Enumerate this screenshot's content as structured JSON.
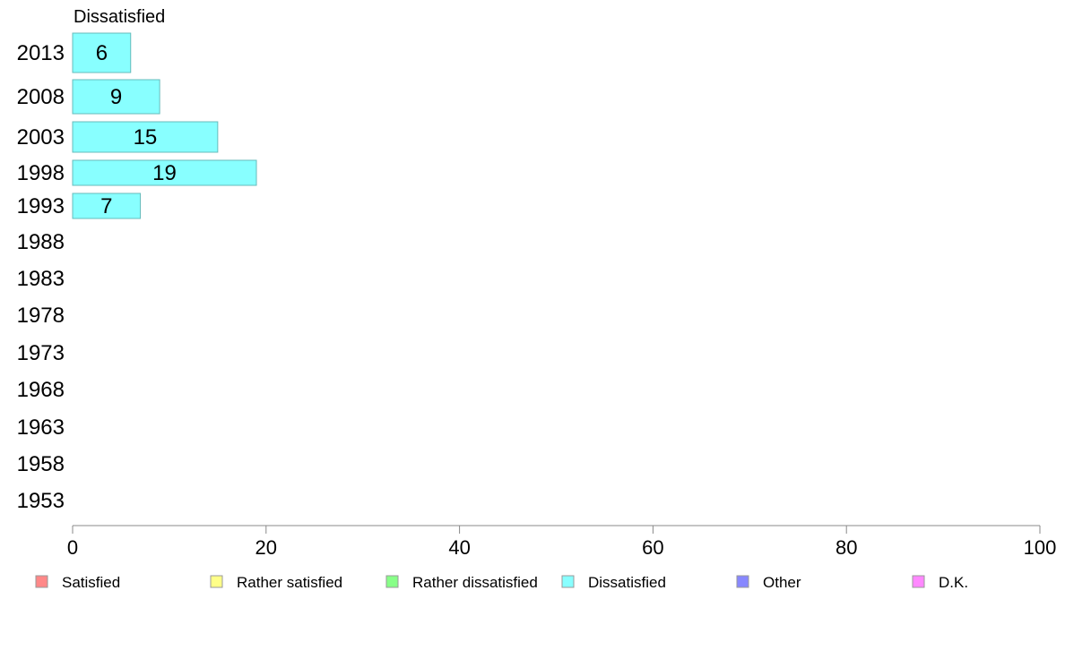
{
  "chart_data": {
    "type": "bar",
    "orientation": "horizontal",
    "title": "Dissatisfied",
    "categories": [
      "2013",
      "2008",
      "2003",
      "1998",
      "1993",
      "1988",
      "1983",
      "1978",
      "1973",
      "1968",
      "1963",
      "1958",
      "1953"
    ],
    "series": [
      {
        "name": "Dissatisfied",
        "values": [
          6,
          9,
          15,
          19,
          7,
          null,
          null,
          null,
          null,
          null,
          null,
          null,
          null
        ],
        "color": "#88ffff"
      }
    ],
    "xlim": [
      0,
      100
    ],
    "xticks": [
      "0",
      "20",
      "40",
      "60",
      "80",
      "100"
    ],
    "grid": false,
    "legend_position": "bottom",
    "legend": [
      {
        "label": "Satisfied",
        "color": "#ff8888"
      },
      {
        "label": "Rather satisfied",
        "color": "#ffff88"
      },
      {
        "label": "Rather dissatisfied",
        "color": "#88ff88"
      },
      {
        "label": "Dissatisfied",
        "color": "#88ffff"
      },
      {
        "label": "Other",
        "color": "#8888ff"
      },
      {
        "label": "D.K.",
        "color": "#ff88ff"
      }
    ]
  }
}
